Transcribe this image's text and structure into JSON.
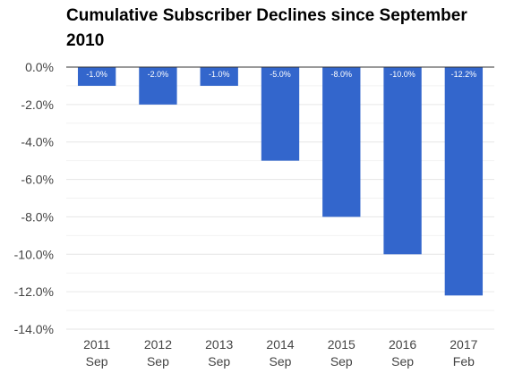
{
  "chart_data": {
    "type": "bar",
    "title": "Cumulative Subscriber Declines since September 2010",
    "categories": [
      [
        "2011",
        "Sep"
      ],
      [
        "2012",
        "Sep"
      ],
      [
        "2013",
        "Sep"
      ],
      [
        "2014",
        "Sep"
      ],
      [
        "2015",
        "Sep"
      ],
      [
        "2016",
        "Sep"
      ],
      [
        "2017",
        "Feb"
      ]
    ],
    "values": [
      -1.0,
      -2.0,
      -1.0,
      -5.0,
      -8.0,
      -10.0,
      -12.2
    ],
    "data_labels": [
      "-1.0%",
      "-2.0%",
      "-1.0%",
      "-5.0%",
      "-8.0%",
      "-10.0%",
      "-12.2%"
    ],
    "y_ticks": [
      0,
      -2,
      -4,
      -6,
      -8,
      -10,
      -12,
      -14
    ],
    "y_tick_labels": [
      "0.0%",
      "-2.0%",
      "-4.0%",
      "-6.0%",
      "-8.0%",
      "-10.0%",
      "-12.0%",
      "-14.0%"
    ],
    "ylim": [
      -14,
      0
    ],
    "xlabel": "",
    "ylabel": "",
    "grid": true,
    "legend": "none",
    "colors": {
      "bar": "#3366cc",
      "grid": "#e6e6e6",
      "baseline": "#333333",
      "text": "#444444",
      "label": "#ffffff"
    }
  }
}
